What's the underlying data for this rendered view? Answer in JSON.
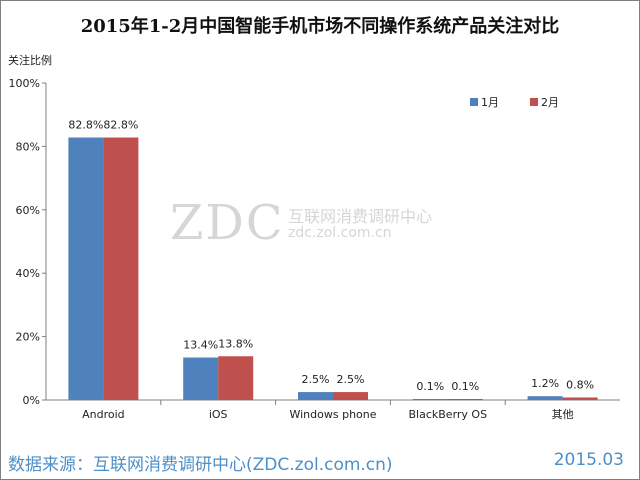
{
  "chart_data": {
    "type": "bar",
    "title": "2015年1-2月中国智能手机市场不同操作系统产品关注对比",
    "ylabel": "关注比例",
    "xlabel": "",
    "ylim": [
      0,
      100
    ],
    "y_ticks": [
      "0%",
      "20%",
      "40%",
      "60%",
      "80%",
      "100%"
    ],
    "categories": [
      "Android",
      "iOS",
      "Windows phone",
      "BlackBerry OS",
      "其他"
    ],
    "series": [
      {
        "name": "1月",
        "values": [
          82.8,
          13.4,
          2.5,
          0.1,
          1.2
        ],
        "labels": [
          "82.8%",
          "13.4%",
          "2.5%",
          "0.1%",
          "1.2%"
        ],
        "color": "#4f81bd"
      },
      {
        "name": "2月",
        "values": [
          82.8,
          13.8,
          2.5,
          0.1,
          0.8
        ],
        "labels": [
          "82.8%",
          "13.8%",
          "2.5%",
          "0.1%",
          "0.8%"
        ],
        "color": "#c0504d"
      }
    ],
    "legend_position": "top-right",
    "grid": false
  },
  "watermark": {
    "logo": "ZDC",
    "name": "互联网消费调研中心",
    "url": "zdc.zol.com.cn"
  },
  "footer": {
    "source": "数据来源：互联网消费调研中心(ZDC.zol.com.cn)",
    "date": "2015.03",
    "color": "#4d8fc8"
  }
}
